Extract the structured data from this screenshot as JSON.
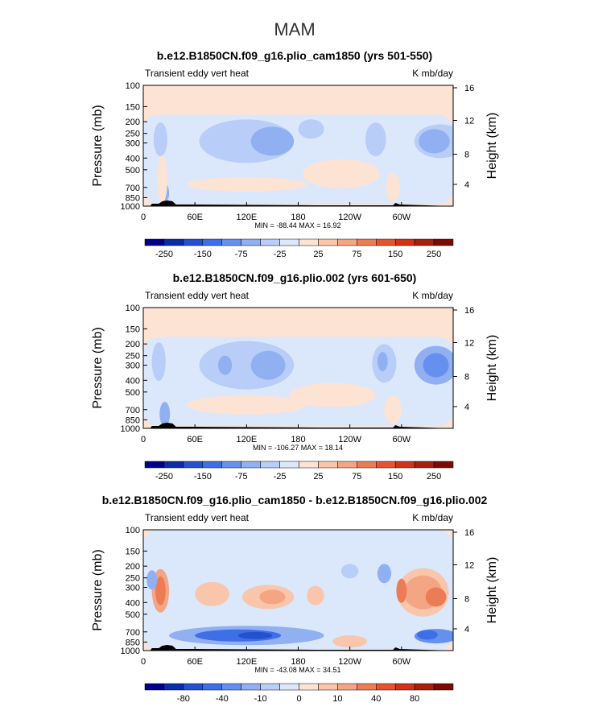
{
  "chart_data": {
    "type": "heatmap",
    "title": "MAM",
    "panels": [
      {
        "title": "b.e12.B1850CN.f09_g16.plio_cam1850 (yrs 501-550)",
        "left_label": "Transient eddy vert heat",
        "right_label": "K mb/day",
        "ylabel": "Pressure (mb)",
        "ylabel_right": "Height (km)",
        "yticks": [
          "100",
          "150",
          "200",
          "250",
          "300",
          "400",
          "500",
          "700",
          "850",
          "1000"
        ],
        "yticks_right": [
          "16",
          "12",
          "8",
          "4"
        ],
        "xticks": [
          "0",
          "60E",
          "120E",
          "180",
          "120W",
          "60W"
        ],
        "min_max": "MIN = -88.44   MAX =  16.92",
        "colorbar_labels": [
          "-250",
          "-150",
          "-75",
          "-25",
          "25",
          "75",
          "150",
          "250"
        ]
      },
      {
        "title": "b.e12.B1850CN.f09_g16.plio.002 (yrs 601-650)",
        "left_label": "Transient eddy vert heat",
        "right_label": "K mb/day",
        "ylabel": "Pressure (mb)",
        "ylabel_right": "Height (km)",
        "yticks": [
          "100",
          "150",
          "200",
          "250",
          "300",
          "400",
          "500",
          "700",
          "850",
          "1000"
        ],
        "yticks_right": [
          "16",
          "12",
          "8",
          "4"
        ],
        "xticks": [
          "0",
          "60E",
          "120E",
          "180",
          "120W",
          "60W"
        ],
        "min_max": "MIN = -106.27   MAX =  18.14",
        "colorbar_labels": [
          "-250",
          "-150",
          "-75",
          "-25",
          "25",
          "75",
          "150",
          "250"
        ]
      },
      {
        "title": "b.e12.B1850CN.f09_g16.plio_cam1850 - b.e12.B1850CN.f09_g16.plio.002",
        "left_label": "Transient eddy vert heat",
        "right_label": "K mb/day",
        "ylabel": "Pressure (mb)",
        "ylabel_right": "Height (km)",
        "yticks": [
          "100",
          "150",
          "200",
          "250",
          "300",
          "400",
          "500",
          "700",
          "850",
          "1000"
        ],
        "yticks_right": [
          "16",
          "12",
          "8",
          "4"
        ],
        "xticks": [
          "0",
          "60E",
          "120E",
          "180",
          "120W",
          "60W"
        ],
        "min_max": "MIN = -43.08   MAX =  34.51",
        "colorbar_labels": [
          "-80",
          "-40",
          "-10",
          "0",
          "10",
          "40",
          "80"
        ]
      }
    ],
    "colorbar_colors": [
      "#00008b",
      "#0a2ca8",
      "#2451cf",
      "#3f6fe6",
      "#6690ee",
      "#90b0f2",
      "#b8cdf7",
      "#dbe7fb",
      "#fde3d4",
      "#f9c5ab",
      "#f4a584",
      "#ec7c55",
      "#e4552f",
      "#cf3218",
      "#a81f0c",
      "#7a0a03"
    ]
  }
}
